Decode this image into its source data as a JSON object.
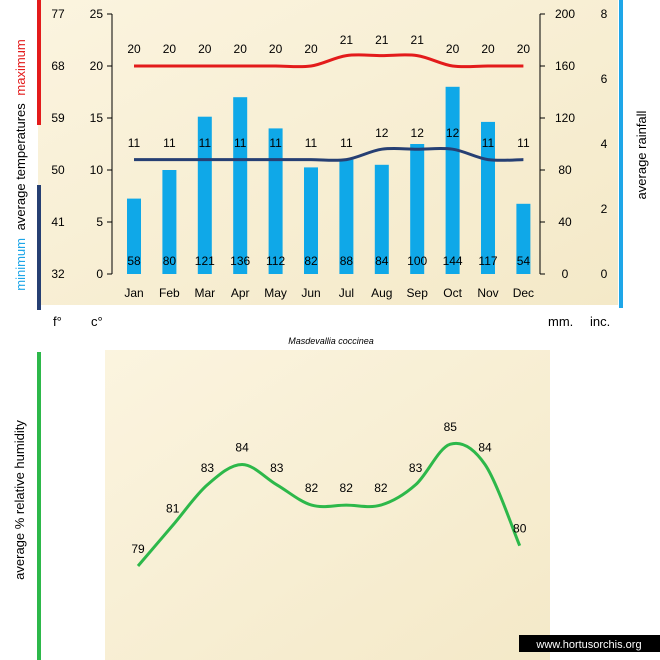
{
  "chart_data": [
    {
      "type": "bar+line",
      "title": "Masdevallia coccinea",
      "categories": [
        "Jan",
        "Feb",
        "Mar",
        "Apr",
        "May",
        "Jun",
        "Jul",
        "Aug",
        "Sep",
        "Oct",
        "Nov",
        "Dec"
      ],
      "series": [
        {
          "name": "average rainfall",
          "axis": "mm",
          "type": "bar",
          "values": [
            58,
            80,
            121,
            136,
            112,
            82,
            88,
            84,
            100,
            144,
            117,
            54
          ]
        },
        {
          "name": "maximum",
          "axis": "c",
          "type": "line",
          "values": [
            20,
            20,
            20,
            20,
            20,
            20,
            21,
            21,
            21,
            20,
            20,
            20
          ]
        },
        {
          "name": "minimum",
          "axis": "c",
          "type": "line",
          "values": [
            11,
            11,
            11,
            11,
            11,
            11,
            11,
            12,
            12,
            12,
            11,
            11
          ]
        }
      ],
      "axes": {
        "f": {
          "unit": "f°",
          "ticks": [
            32,
            41,
            50,
            59,
            68,
            77
          ]
        },
        "c": {
          "unit": "c°",
          "ticks": [
            0,
            5,
            10,
            15,
            20,
            25
          ],
          "range": [
            0,
            25
          ]
        },
        "mm": {
          "unit": "mm.",
          "ticks": [
            0,
            40,
            80,
            120,
            160,
            200
          ],
          "range": [
            0,
            200
          ]
        },
        "inc": {
          "unit": "inc.",
          "ticks": [
            0,
            2,
            4,
            6,
            8
          ]
        }
      },
      "labels": {
        "left_prefix": "average temperatures",
        "max_word": "maximum",
        "min_word": "minimum",
        "right": "average rainfall"
      },
      "colors": {
        "max": "#e31b1b",
        "min": "#263f73",
        "bar": "#0fa8e8",
        "rain_marker": "#1ea6e8"
      }
    },
    {
      "type": "line",
      "ylabel": "average %  relative humidity",
      "categories": [
        "Jan",
        "Feb",
        "Mar",
        "Apr",
        "May",
        "Jun",
        "Jul",
        "Aug",
        "Sep",
        "Oct",
        "Nov",
        "Dec"
      ],
      "values": [
        79,
        81,
        83,
        84,
        83,
        82,
        82,
        82,
        83,
        85,
        84,
        80
      ],
      "colors": {
        "line": "#2db84a",
        "marker": "#2db84a"
      }
    }
  ],
  "footer": {
    "watermark": "www.hortusorchis.org"
  }
}
